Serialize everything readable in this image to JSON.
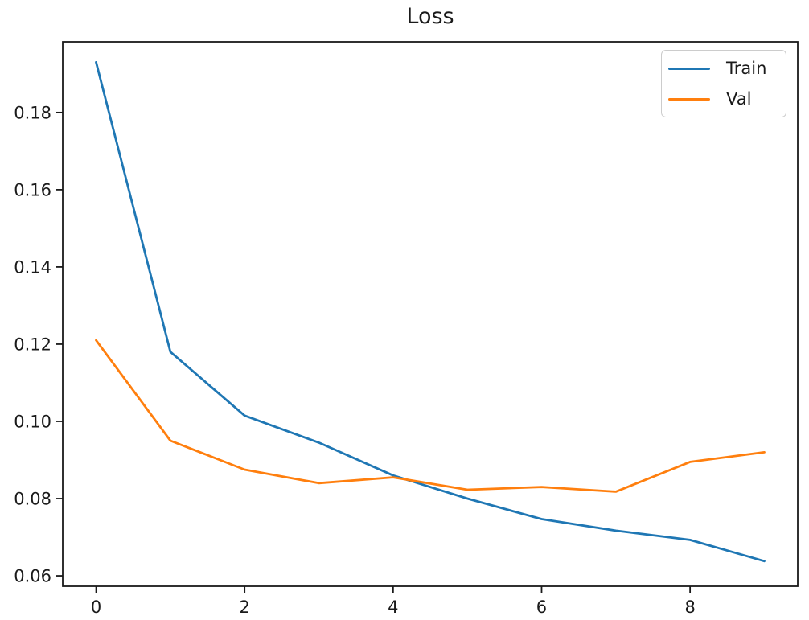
{
  "chart_data": {
    "type": "line",
    "title": "Loss",
    "xlabel": "",
    "ylabel": "",
    "grid": false,
    "x": [
      0,
      1,
      2,
      3,
      4,
      5,
      6,
      7,
      8,
      9
    ],
    "series": [
      {
        "name": "Train",
        "color": "#1f77b4",
        "values": [
          0.193,
          0.118,
          0.1015,
          0.0945,
          0.086,
          0.08,
          0.0747,
          0.0717,
          0.0693,
          0.0638
        ]
      },
      {
        "name": "Val",
        "color": "#ff7f0e",
        "values": [
          0.121,
          0.095,
          0.0875,
          0.084,
          0.0855,
          0.0823,
          0.083,
          0.0818,
          0.0895,
          0.092
        ]
      }
    ],
    "xlim": [
      -0.45,
      9.45
    ],
    "ylim": [
      0.0573,
      0.1983
    ],
    "xticks": [
      {
        "value": 0,
        "label": "0"
      },
      {
        "value": 2,
        "label": "2"
      },
      {
        "value": 4,
        "label": "4"
      },
      {
        "value": 6,
        "label": "6"
      },
      {
        "value": 8,
        "label": "8"
      }
    ],
    "yticks": [
      {
        "value": 0.06,
        "label": "0.06"
      },
      {
        "value": 0.08,
        "label": "0.08"
      },
      {
        "value": 0.1,
        "label": "0.10"
      },
      {
        "value": 0.12,
        "label": "0.12"
      },
      {
        "value": 0.14,
        "label": "0.14"
      },
      {
        "value": 0.16,
        "label": "0.16"
      },
      {
        "value": 0.18,
        "label": "0.18"
      }
    ],
    "legend": {
      "position": "upper right",
      "entries": [
        "Train",
        "Val"
      ]
    },
    "axis_color": "#1a1a1a",
    "text_color": "#1a1a1a",
    "background_color": "#ffffff"
  }
}
